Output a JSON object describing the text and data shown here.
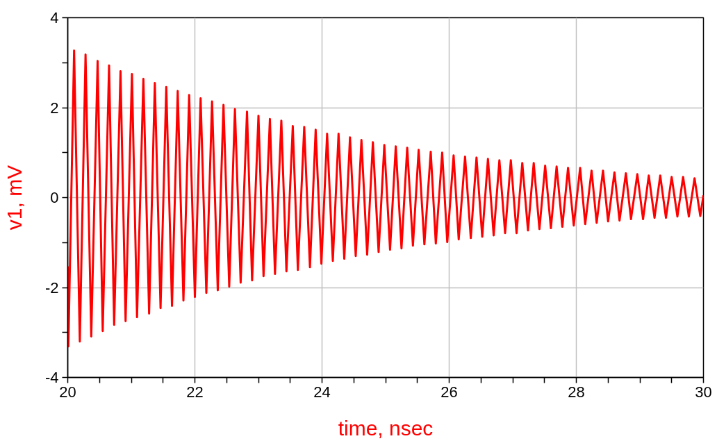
{
  "chart_data": {
    "type": "line",
    "xlabel": "time, nsec",
    "ylabel": "v1, mV",
    "xlim": [
      20,
      30
    ],
    "ylim": [
      -4,
      4
    ],
    "xticks": [
      20,
      {
        "value": 20.5,
        "label": null
      },
      {
        "value": 21,
        "label": null
      },
      {
        "value": 21.5,
        "label": null
      },
      22,
      {
        "value": 22.5,
        "label": null
      },
      {
        "value": 23,
        "label": null
      },
      {
        "value": 23.5,
        "label": null
      },
      24,
      {
        "value": 24.5,
        "label": null
      },
      {
        "value": 25,
        "label": null
      },
      {
        "value": 25.5,
        "label": null
      },
      26,
      {
        "value": 26.5,
        "label": null
      },
      {
        "value": 27,
        "label": null
      },
      {
        "value": 27.5,
        "label": null
      },
      28,
      {
        "value": 28.5,
        "label": null
      },
      {
        "value": 29,
        "label": null
      },
      {
        "value": 29.5,
        "label": null
      },
      30
    ],
    "yticks": [
      -4,
      {
        "value": -3,
        "label": null
      },
      -2,
      {
        "value": -1,
        "label": null
      },
      0,
      {
        "value": 1,
        "label": null
      },
      2,
      {
        "value": 3,
        "label": null
      },
      4
    ],
    "grid": true,
    "marker": "none",
    "line_style": "solid",
    "series": [
      {
        "color": "#ff0000",
        "x": [
          20,
          20.01,
          20.1,
          20.19,
          20.28,
          20.37,
          20.47,
          20.55,
          20.65,
          20.73,
          20.83,
          20.91,
          21.01,
          21.09,
          21.19,
          21.28,
          21.37,
          21.46,
          21.55,
          21.64,
          21.73,
          21.82,
          21.91,
          22.0,
          22.09,
          22.18,
          22.27,
          22.36,
          22.45,
          22.54,
          22.63,
          22.72,
          22.82,
          22.9,
          23.0,
          23.08,
          23.18,
          23.26,
          23.36,
          23.44,
          23.54,
          23.62,
          23.72,
          23.81,
          23.9,
          23.99,
          24.08,
          24.17,
          24.26,
          24.35,
          24.44,
          24.53,
          24.62,
          24.71,
          24.8,
          24.89,
          24.98,
          25.07,
          25.16,
          25.25,
          25.34,
          25.43,
          25.52,
          25.61,
          25.71,
          25.79,
          25.89,
          25.97,
          26.07,
          26.15,
          26.25,
          26.34,
          26.43,
          26.52,
          26.61,
          26.7,
          26.79,
          26.88,
          26.97,
          27.06,
          27.15,
          27.24,
          27.33,
          27.42,
          27.51,
          27.6,
          27.69,
          27.78,
          27.87,
          27.96,
          28.06,
          28.14,
          28.24,
          28.32,
          28.42,
          28.5,
          28.6,
          28.68,
          28.78,
          28.86,
          28.96,
          29.05,
          29.14,
          29.23,
          29.32,
          29.41,
          29.5,
          29.59,
          29.68,
          29.77,
          29.86,
          29.95,
          30
        ],
        "values": [
          -1.53,
          -3.31,
          3.27,
          -3.2,
          3.18,
          -3.09,
          3.04,
          -2.97,
          2.94,
          -2.83,
          2.81,
          -2.75,
          2.75,
          -2.66,
          2.64,
          -2.58,
          2.55,
          -2.46,
          2.46,
          -2.41,
          2.37,
          -2.29,
          2.28,
          -2.21,
          2.21,
          -2.12,
          2.14,
          -2.06,
          2.06,
          -1.98,
          1.97,
          -1.89,
          1.91,
          -1.84,
          1.82,
          -1.75,
          1.75,
          -1.7,
          1.71,
          -1.64,
          1.59,
          -1.61,
          1.57,
          -1.55,
          1.51,
          -1.47,
          1.42,
          -1.41,
          1.42,
          -1.36,
          1.34,
          -1.3,
          1.28,
          -1.27,
          1.23,
          -1.21,
          1.17,
          -1.16,
          1.14,
          -1.13,
          1.11,
          -1.07,
          1.06,
          -1.04,
          1.02,
          -1.02,
          1.0,
          -0.99,
          0.94,
          -0.93,
          0.91,
          -0.9,
          0.89,
          -0.87,
          0.86,
          -0.84,
          0.83,
          -0.79,
          0.83,
          -0.79,
          0.77,
          -0.73,
          0.77,
          -0.7,
          0.71,
          -0.68,
          0.69,
          -0.65,
          0.66,
          -0.62,
          0.66,
          -0.59,
          0.6,
          -0.56,
          0.6,
          -0.53,
          0.56,
          -0.51,
          0.54,
          -0.48,
          0.52,
          -0.48,
          0.49,
          -0.45,
          0.49,
          -0.45,
          0.46,
          -0.42,
          0.46,
          -0.42,
          0.43,
          -0.41,
          0.05
        ]
      }
    ]
  }
}
